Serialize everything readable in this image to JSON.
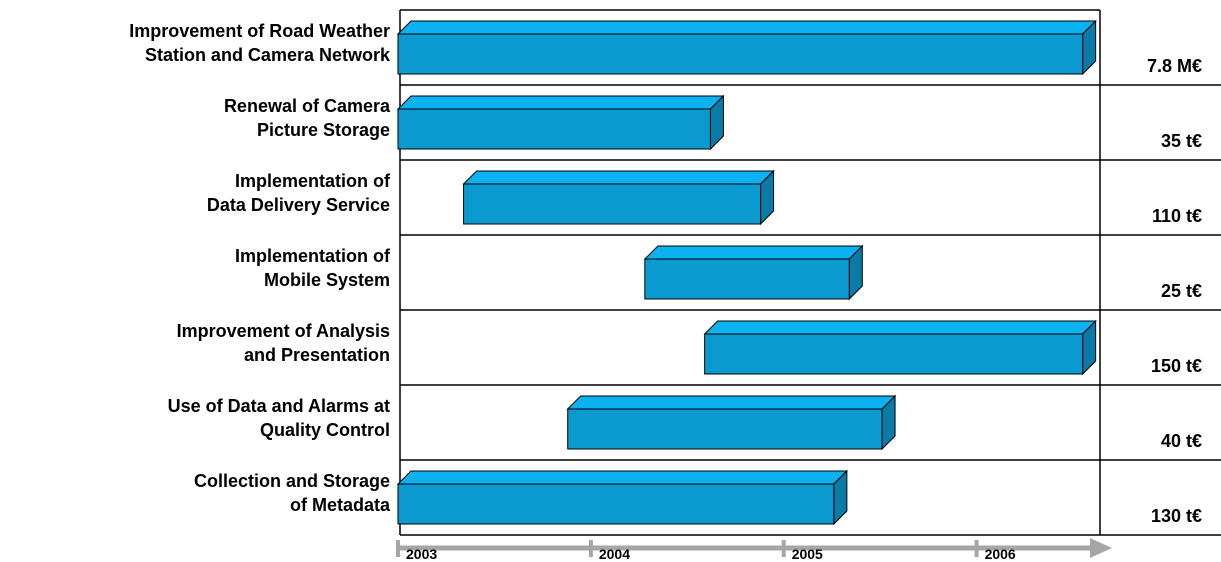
{
  "chart_data": {
    "type": "gantt",
    "categories": [
      [
        "Improvement of Road Weather",
        "Station and Camera Network"
      ],
      [
        "Renewal of Camera",
        "Picture Storage"
      ],
      [
        "Implementation of",
        "Data Delivery Service"
      ],
      [
        "Implementation of",
        "Mobile System"
      ],
      [
        "Improvement of Analysis",
        "and Presentation"
      ],
      [
        "Use of Data and Alarms at",
        "Quality Control"
      ],
      [
        "Collection and Storage",
        "of Metadata"
      ]
    ],
    "start": [
      2003.0,
      2003.0,
      2003.34,
      2004.28,
      2004.59,
      2003.88,
      2003.0
    ],
    "end": [
      2006.55,
      2004.62,
      2004.88,
      2005.34,
      2006.55,
      2005.51,
      2005.26
    ],
    "costs": [
      "7.8 M€",
      "35 t€",
      "110 t€",
      "25 t€",
      "150 t€",
      "40 t€",
      "130 t€"
    ],
    "color": "#0a9ad0",
    "xlim": [
      2003,
      2006.64
    ],
    "xticks": [
      2003,
      2004,
      2005,
      2006
    ]
  }
}
